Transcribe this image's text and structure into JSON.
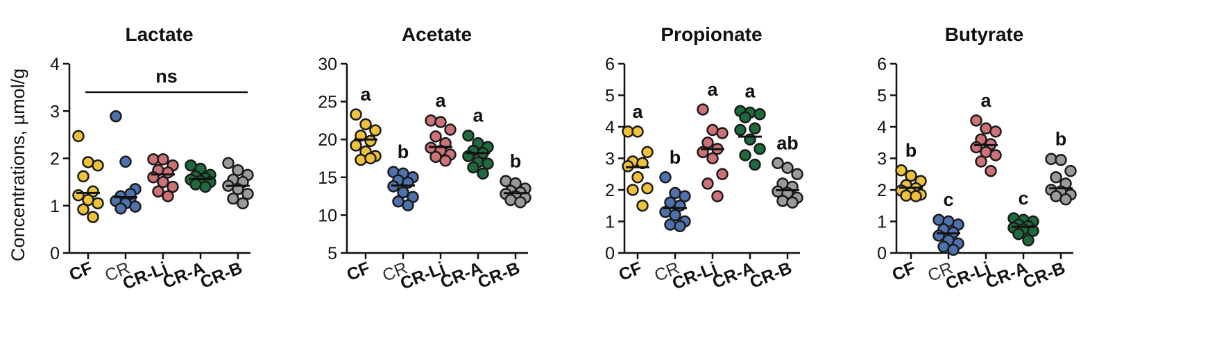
{
  "ylabel": "Concentrations, µmol/g",
  "chart_data": [
    {
      "type": "scatter",
      "title": "Lactate",
      "ylim": [
        0,
        4
      ],
      "yticks": [
        0,
        1,
        2,
        3,
        4
      ],
      "categories": [
        "CF",
        "CR",
        "CR-Lj",
        "CR-A",
        "CR-B"
      ],
      "significance": [
        "",
        "",
        "",
        "",
        ""
      ],
      "annotation": "ns",
      "means": [
        1.27,
        1.18,
        1.66,
        1.56,
        1.42
      ],
      "series": [
        {
          "name": "CF",
          "color": "#f0c23a",
          "values": [
            2.47,
            1.92,
            1.85,
            1.62,
            1.3,
            1.22,
            1.12,
            1.05,
            0.92,
            0.76
          ]
        },
        {
          "name": "CR",
          "color": "#4e72ad",
          "values": [
            2.89,
            1.93,
            1.35,
            1.2,
            1.15,
            1.1,
            1.05,
            0.98,
            0.94,
            1.25
          ]
        },
        {
          "name": "CR-Lj",
          "color": "#cd7276",
          "values": [
            1.98,
            1.98,
            1.85,
            1.75,
            1.7,
            1.6,
            1.5,
            1.4,
            1.3,
            1.2
          ]
        },
        {
          "name": "CR-A",
          "color": "#1e6a3e",
          "values": [
            1.85,
            1.78,
            1.65,
            1.62,
            1.58,
            1.55,
            1.52,
            1.5,
            1.45,
            1.4
          ]
        },
        {
          "name": "CR-B",
          "color": "#9a9a9a",
          "values": [
            1.9,
            1.75,
            1.65,
            1.55,
            1.5,
            1.42,
            1.35,
            1.25,
            1.15,
            1.05
          ]
        }
      ]
    },
    {
      "type": "scatter",
      "title": "Acetate",
      "ylim": [
        5,
        30
      ],
      "yticks": [
        5,
        10,
        15,
        20,
        25,
        30
      ],
      "categories": [
        "CF",
        "CR",
        "CR-Lj",
        "CR-A",
        "CR-B"
      ],
      "significance": [
        "a",
        "b",
        "a",
        "a",
        "b"
      ],
      "annotation": "",
      "means": [
        20.0,
        13.9,
        19.0,
        18.2,
        12.9
      ],
      "series": [
        {
          "name": "CF",
          "color": "#f0c23a",
          "values": [
            23.3,
            22.0,
            21.2,
            20.5,
            19.8,
            19.2,
            18.4,
            17.8,
            17.3,
            17.5
          ]
        },
        {
          "name": "CR",
          "color": "#4e72ad",
          "values": [
            15.7,
            15.5,
            15.0,
            14.6,
            14.3,
            13.8,
            13.0,
            12.4,
            11.8,
            11.3
          ]
        },
        {
          "name": "CR-Lj",
          "color": "#cd7276",
          "values": [
            22.5,
            22.3,
            21.3,
            20.4,
            19.5,
            18.9,
            18.5,
            18.0,
            17.7,
            17.2
          ]
        },
        {
          "name": "CR-A",
          "color": "#1e6a3e",
          "values": [
            20.5,
            19.5,
            19.0,
            18.5,
            18.2,
            17.8,
            17.0,
            16.8,
            16.3,
            15.5
          ]
        },
        {
          "name": "CR-B",
          "color": "#9a9a9a",
          "values": [
            14.5,
            14.2,
            13.5,
            13.2,
            13.0,
            12.8,
            12.5,
            12.3,
            12.0,
            11.7
          ]
        }
      ]
    },
    {
      "type": "scatter",
      "title": "Propionate",
      "ylim": [
        0,
        6
      ],
      "yticks": [
        0,
        1,
        2,
        3,
        4,
        5,
        6
      ],
      "categories": [
        "CF",
        "CR",
        "CR-Lj",
        "CR-A",
        "CR-B"
      ],
      "significance": [
        "a",
        "b",
        "a",
        "a",
        "ab"
      ],
      "annotation": "",
      "means": [
        2.72,
        1.42,
        3.29,
        3.69,
        1.99
      ],
      "series": [
        {
          "name": "CF",
          "color": "#f0c23a",
          "values": [
            3.85,
            3.85,
            3.2,
            2.9,
            2.85,
            2.75,
            2.4,
            2.05,
            2.0,
            1.5
          ]
        },
        {
          "name": "CR",
          "color": "#4e72ad",
          "values": [
            2.4,
            1.9,
            1.8,
            1.6,
            1.5,
            1.3,
            1.2,
            1.0,
            0.9,
            0.85
          ]
        },
        {
          "name": "CR-Lj",
          "color": "#cd7276",
          "values": [
            4.55,
            3.9,
            3.8,
            3.5,
            3.3,
            3.2,
            3.0,
            2.5,
            2.2,
            1.8
          ]
        },
        {
          "name": "CR-A",
          "color": "#1e6a3e",
          "values": [
            4.5,
            4.45,
            4.4,
            4.3,
            3.95,
            3.9,
            3.6,
            3.3,
            3.1,
            2.8
          ]
        },
        {
          "name": "CR-B",
          "color": "#9a9a9a",
          "values": [
            2.85,
            2.7,
            2.5,
            2.2,
            2.1,
            1.95,
            1.9,
            1.75,
            1.65,
            1.6
          ]
        }
      ]
    },
    {
      "type": "scatter",
      "title": "Butyrate",
      "ylim": [
        0,
        6
      ],
      "yticks": [
        0,
        1,
        2,
        3,
        4,
        5,
        6
      ],
      "categories": [
        "CF",
        "CR",
        "CR-Lj",
        "CR-A",
        "CR-B"
      ],
      "significance": [
        "b",
        "c",
        "a",
        "c",
        "b"
      ],
      "annotation": "",
      "means": [
        2.07,
        0.62,
        3.42,
        0.83,
        2.05
      ],
      "series": [
        {
          "name": "CF",
          "color": "#f0c23a",
          "values": [
            2.62,
            2.45,
            2.28,
            2.15,
            2.05,
            1.98,
            1.9,
            1.85,
            1.82,
            1.8
          ]
        },
        {
          "name": "CR",
          "color": "#4e72ad",
          "values": [
            1.05,
            1.0,
            0.9,
            0.75,
            0.65,
            0.55,
            0.4,
            0.3,
            0.2,
            0.1
          ]
        },
        {
          "name": "CR-Lj",
          "color": "#cd7276",
          "values": [
            4.2,
            3.95,
            3.85,
            3.6,
            3.45,
            3.35,
            3.2,
            3.1,
            2.9,
            2.6
          ]
        },
        {
          "name": "CR-A",
          "color": "#1e6a3e",
          "values": [
            1.1,
            1.05,
            1.0,
            0.9,
            0.85,
            0.8,
            0.75,
            0.7,
            0.6,
            0.4
          ]
        },
        {
          "name": "CR-B",
          "color": "#9a9a9a",
          "values": [
            2.98,
            2.95,
            2.6,
            2.4,
            2.2,
            2.0,
            1.95,
            1.85,
            1.8,
            1.7
          ]
        }
      ]
    }
  ]
}
